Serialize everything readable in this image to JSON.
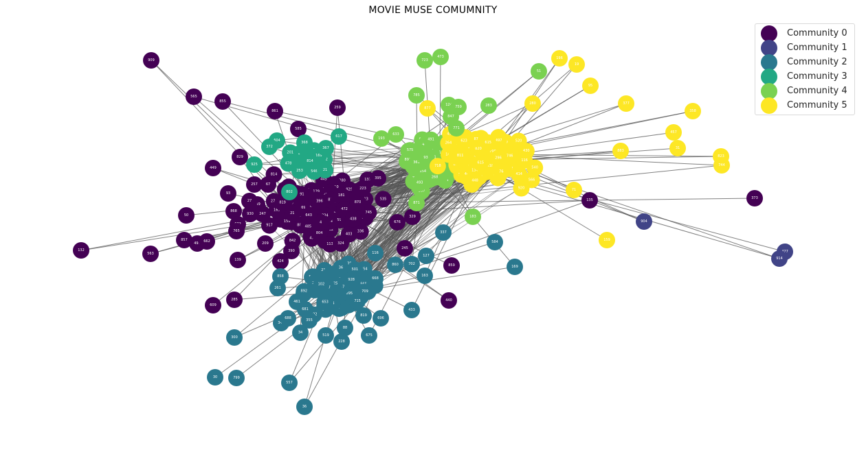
{
  "title": "MOVIE MUSE COMUMNITY",
  "legend": [
    {
      "label": "Community 0",
      "color": "#440154"
    },
    {
      "label": "Community 1",
      "color": "#414487"
    },
    {
      "label": "Community 2",
      "color": "#2a788e"
    },
    {
      "label": "Community 3",
      "color": "#22a884"
    },
    {
      "label": "Community 4",
      "color": "#7ad151"
    },
    {
      "label": "Community 5",
      "color": "#fde725"
    }
  ],
  "edge_color": "#555555",
  "peripheral_nodes": [
    {
      "label": "909",
      "community": 0
    },
    {
      "label": "565",
      "community": 0
    },
    {
      "label": "855",
      "community": 0
    },
    {
      "label": "861",
      "community": 0
    },
    {
      "label": "259",
      "community": 0
    },
    {
      "label": "585",
      "community": 0
    },
    {
      "label": "829",
      "community": 0
    },
    {
      "label": "449",
      "community": 0
    },
    {
      "label": "93",
      "community": 0
    },
    {
      "label": "50",
      "community": 0
    },
    {
      "label": "132",
      "community": 0
    },
    {
      "label": "563",
      "community": 0
    },
    {
      "label": "857",
      "community": 0
    },
    {
      "label": "491",
      "community": 0
    },
    {
      "label": "662",
      "community": 0
    },
    {
      "label": "139",
      "community": 0
    },
    {
      "label": "424",
      "community": 0
    },
    {
      "label": "285",
      "community": 0
    },
    {
      "label": "609",
      "community": 0
    },
    {
      "label": "859",
      "community": 0
    },
    {
      "label": "440",
      "community": 0
    },
    {
      "label": "135",
      "community": 0
    },
    {
      "label": "373",
      "community": 0
    },
    {
      "label": "245",
      "community": 0
    },
    {
      "label": "676",
      "community": 0
    },
    {
      "label": "329",
      "community": 0
    },
    {
      "label": "257",
      "community": 0
    },
    {
      "label": "67",
      "community": 0
    },
    {
      "label": "349",
      "community": 0
    },
    {
      "label": "27",
      "community": 0
    },
    {
      "label": "868",
      "community": 0
    },
    {
      "label": "930",
      "community": 0
    },
    {
      "label": "247",
      "community": 0
    },
    {
      "label": "672",
      "community": 0
    },
    {
      "label": "765",
      "community": 0
    },
    {
      "label": "209",
      "community": 0
    },
    {
      "label": "390",
      "community": 0
    },
    {
      "label": "137",
      "community": 0
    },
    {
      "label": "395",
      "community": 0
    },
    {
      "label": "223",
      "community": 0
    },
    {
      "label": "113",
      "community": 0
    },
    {
      "label": "324",
      "community": 0
    },
    {
      "label": "904",
      "community": 1
    },
    {
      "label": "477",
      "community": 1
    },
    {
      "label": "914",
      "community": 1
    },
    {
      "label": "300",
      "community": 2
    },
    {
      "label": "30",
      "community": 2
    },
    {
      "label": "799",
      "community": 2
    },
    {
      "label": "557",
      "community": 2
    },
    {
      "label": "36",
      "community": 2
    },
    {
      "label": "341",
      "community": 2
    },
    {
      "label": "34",
      "community": 2
    },
    {
      "label": "519",
      "community": 2
    },
    {
      "label": "228",
      "community": 2
    },
    {
      "label": "675",
      "community": 2
    },
    {
      "label": "696",
      "community": 2
    },
    {
      "label": "433",
      "community": 2
    },
    {
      "label": "169",
      "community": 2
    },
    {
      "label": "584",
      "community": 2
    },
    {
      "label": "337",
      "community": 2
    },
    {
      "label": "163",
      "community": 2
    },
    {
      "label": "860",
      "community": 2
    },
    {
      "label": "702",
      "community": 2
    },
    {
      "label": "127",
      "community": 2
    },
    {
      "label": "116",
      "community": 2
    },
    {
      "label": "858",
      "community": 2
    },
    {
      "label": "261",
      "community": 2
    },
    {
      "label": "688",
      "community": 2
    },
    {
      "label": "355",
      "community": 2
    },
    {
      "label": "88",
      "community": 2
    },
    {
      "label": "819",
      "community": 2
    },
    {
      "label": "668",
      "community": 2
    },
    {
      "label": "461",
      "community": 2
    },
    {
      "label": "681",
      "community": 2
    },
    {
      "label": "604",
      "community": 3
    },
    {
      "label": "372",
      "community": 3
    },
    {
      "label": "368",
      "community": 3
    },
    {
      "label": "617",
      "community": 3
    },
    {
      "label": "367",
      "community": 3
    },
    {
      "label": "925",
      "community": 3
    },
    {
      "label": "814",
      "community": 3
    },
    {
      "label": "253",
      "community": 3
    },
    {
      "label": "546",
      "community": 3
    },
    {
      "label": "21",
      "community": 3
    },
    {
      "label": "802",
      "community": 3
    },
    {
      "label": "723",
      "community": 4
    },
    {
      "label": "473",
      "community": 4
    },
    {
      "label": "51",
      "community": 4
    },
    {
      "label": "785",
      "community": 4
    },
    {
      "label": "124",
      "community": 4
    },
    {
      "label": "759",
      "community": 4
    },
    {
      "label": "283",
      "community": 4
    },
    {
      "label": "633",
      "community": 4
    },
    {
      "label": "193",
      "community": 4
    },
    {
      "label": "871",
      "community": 4
    },
    {
      "label": "183",
      "community": 4
    },
    {
      "label": "847",
      "community": 4
    },
    {
      "label": "771",
      "community": 4
    },
    {
      "label": "196",
      "community": 5
    },
    {
      "label": "19",
      "community": 5
    },
    {
      "label": "95",
      "community": 5
    },
    {
      "label": "377",
      "community": 5
    },
    {
      "label": "358",
      "community": 5
    },
    {
      "label": "457",
      "community": 5
    },
    {
      "label": "31",
      "community": 5
    },
    {
      "label": "823",
      "community": 5
    },
    {
      "label": "744",
      "community": 5
    },
    {
      "label": "159",
      "community": 5
    },
    {
      "label": "280",
      "community": 5
    },
    {
      "label": "71",
      "community": 5
    },
    {
      "label": "877",
      "community": 5
    },
    {
      "label": "883",
      "community": 5
    }
  ]
}
